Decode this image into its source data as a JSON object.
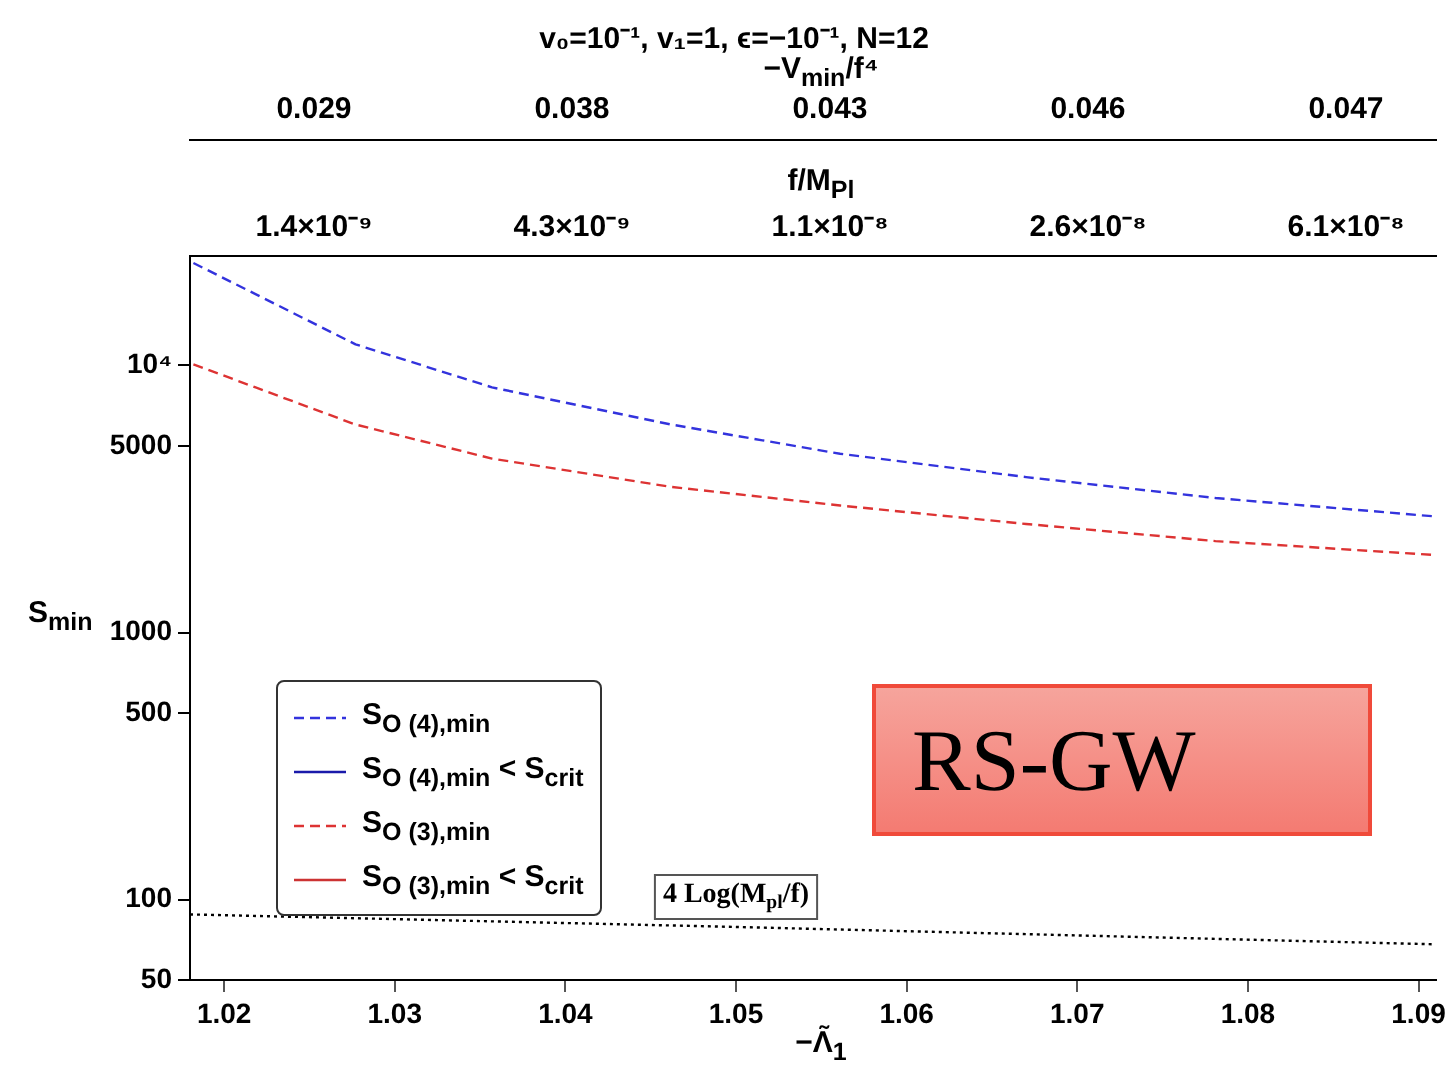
{
  "chart_data": {
    "type": "line",
    "title": "v₀=10⁻¹, v₁=1, ϵ=−10⁻¹, N=12",
    "xlabel": "−Λ̃$_{1}$",
    "ylabel": "S$_{min}$",
    "log": "y",
    "xlim": [
      1.018,
      1.091
    ],
    "xticks": [
      1.02,
      1.03,
      1.04,
      1.05,
      1.06,
      1.07,
      1.08,
      1.09
    ],
    "ylim": [
      50,
      25700
    ],
    "yticks": [
      50,
      100,
      500,
      1000,
      5000,
      {
        "value": 10000,
        "label": "10⁴"
      }
    ],
    "grid": false,
    "legend": "left",
    "series": [
      {
        "name": "S$_{O (4),min}$",
        "color": "#3333dd",
        "line_style": "dashed",
        "x": [
          1.0182,
          1.0277,
          1.0357,
          1.0462,
          1.0561,
          1.067,
          1.0781,
          1.091
        ],
        "values": [
          24200,
          12000,
          8280,
          6010,
          4670,
          3820,
          3190,
          2720
        ]
      },
      {
        "name": "S$_{O (4),min}$ < S$_{crit}$",
        "color": "#1a1aaa",
        "line_style": "solid"
      },
      {
        "name": "S$_{O (3),min}$",
        "color": "#dd3333",
        "line_style": "dashed",
        "x": [
          1.0182,
          1.0277,
          1.0357,
          1.0462,
          1.0561,
          1.067,
          1.0781,
          1.091
        ],
        "values": [
          10100,
          6010,
          4480,
          3510,
          2990,
          2550,
          2200,
          1950
        ]
      },
      {
        "name": "S$_{O (3),min}$ < S$_{crit}$",
        "color": "#cc3333",
        "line_style": "solid"
      },
      {
        "color": "#000000",
        "line_style": "dotted",
        "x": [
          1.018,
          1.05,
          1.091
        ],
        "values": [
          88,
          79,
          68
        ]
      }
    ],
    "annotations": [
      {
        "text": "4 Log(M$_{pl}$/f)",
        "x": 1.05,
        "y": 79
      },
      "−V$_{min}$/f⁴",
      "0.029",
      "0.038",
      "0.043",
      "0.046",
      "0.047",
      "f/M$_{Pl}$",
      "1.4×10⁻⁹",
      "4.3×10⁻⁹",
      "1.1×10⁻⁸",
      "2.6×10⁻⁸",
      "6.1×10⁻⁸",
      "RS-GW"
    ]
  }
}
